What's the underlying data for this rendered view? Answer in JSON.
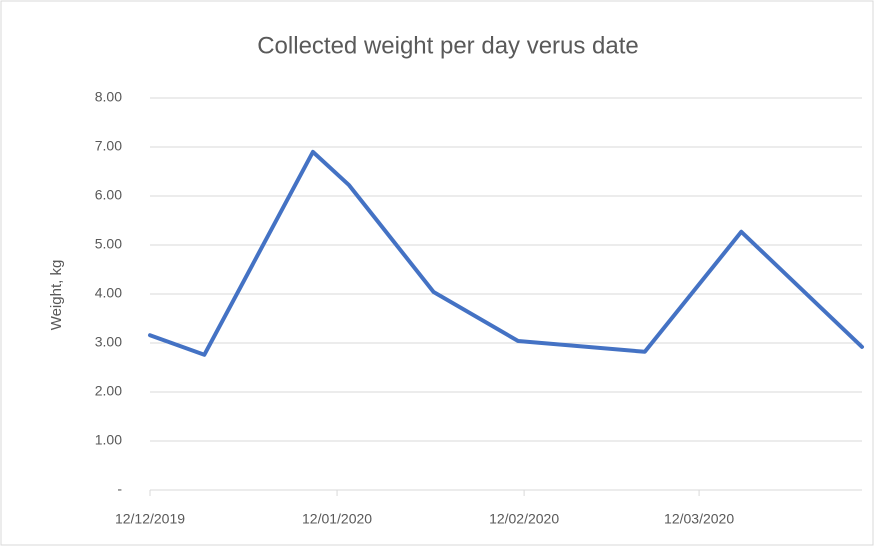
{
  "chart_data": {
    "type": "line",
    "title": "Collected weight per day verus date",
    "y_label": "Weight, kg",
    "x": [
      "2019-12-12",
      "2019-12-21",
      "2020-01-08",
      "2020-01-14",
      "2020-01-28",
      "2020-02-11",
      "2020-03-03",
      "2020-03-19",
      "2020-04-08"
    ],
    "series": [
      {
        "name": "Weight",
        "color": "#4472c4",
        "values": [
          3.16,
          2.76,
          6.9,
          6.22,
          4.04,
          3.04,
          2.82,
          5.27,
          2.92
        ]
      }
    ],
    "xlim": [
      "2019-12-12",
      "2020-04-08"
    ],
    "xticks": [
      {
        "value": "2019-12-12",
        "label": "12/12/2019"
      },
      {
        "value": "2020-01-12",
        "label": "12/01/2020"
      },
      {
        "value": "2020-02-12",
        "label": "12/02/2020"
      },
      {
        "value": "2020-03-12",
        "label": "12/03/2020"
      }
    ],
    "ylim": [
      0,
      8
    ],
    "yticks": [
      {
        "value": 0,
        "label": "-"
      },
      {
        "value": 1,
        "label": "1.00"
      },
      {
        "value": 2,
        "label": "2.00"
      },
      {
        "value": 3,
        "label": "3.00"
      },
      {
        "value": 4,
        "label": "4.00"
      },
      {
        "value": 5,
        "label": "5.00"
      },
      {
        "value": 6,
        "label": "6.00"
      },
      {
        "value": 7,
        "label": "7.00"
      },
      {
        "value": 8,
        "label": "8.00"
      }
    ],
    "grid": true
  }
}
